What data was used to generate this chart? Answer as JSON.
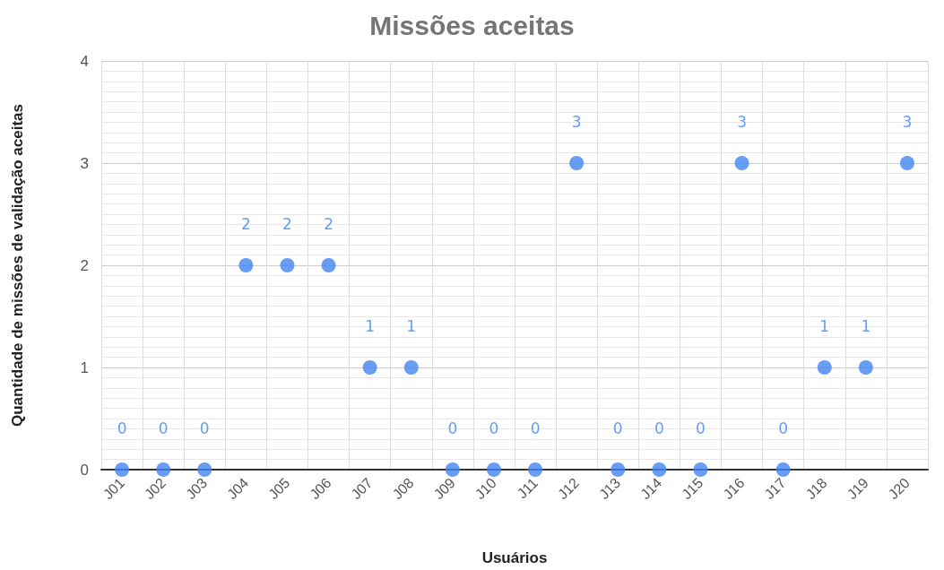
{
  "chart_data": {
    "type": "scatter",
    "title": "Missões aceitas",
    "xlabel": "Usuários",
    "ylabel": "Quantidade de missões de validação aceitas",
    "categories": [
      "J01",
      "J02",
      "J03",
      "J04",
      "J05",
      "J06",
      "J07",
      "J08",
      "J09",
      "J10",
      "J11",
      "J12",
      "J13",
      "J14",
      "J15",
      "J16",
      "J17",
      "J18",
      "J19",
      "J20"
    ],
    "values": [
      0,
      0,
      0,
      2,
      2,
      2,
      1,
      1,
      0,
      0,
      0,
      3,
      0,
      0,
      0,
      3,
      0,
      1,
      1,
      3
    ],
    "color": "#4285f4",
    "ylim": [
      0,
      4
    ],
    "yticks": [
      0,
      1,
      2,
      3,
      4
    ],
    "grid": true,
    "marker": "circle",
    "data_labels": true
  }
}
